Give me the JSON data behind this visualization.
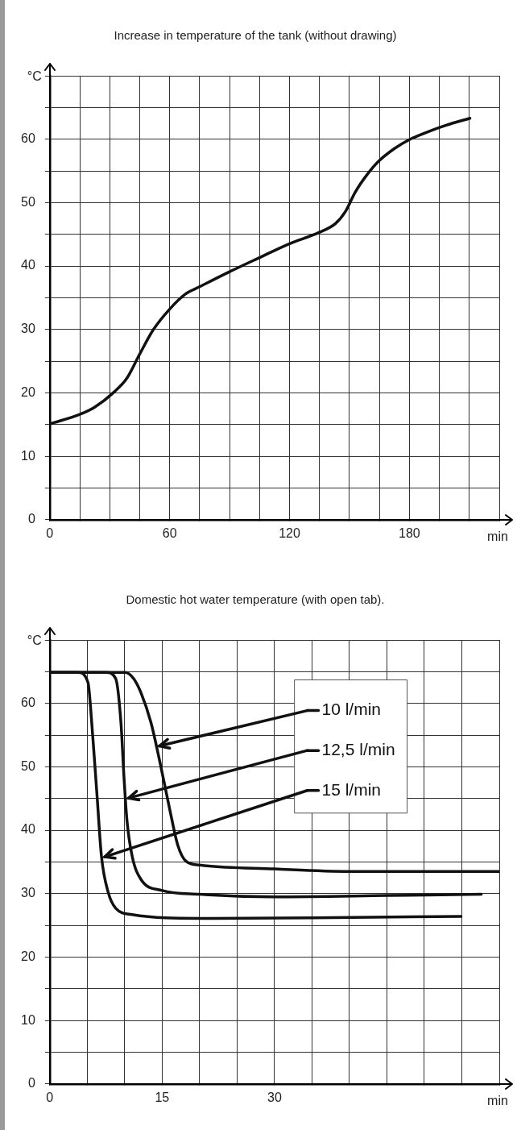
{
  "chart_data": [
    {
      "type": "line",
      "title": "Increase in temperature of the tank (without drawing)",
      "xlabel": "min",
      "ylabel": "°C",
      "grid": true,
      "x": [
        0,
        15,
        22.3,
        32.1,
        38.6,
        45,
        51.7,
        60,
        68,
        74.8,
        90,
        104.8,
        119.8,
        134.8,
        143,
        148,
        152.8,
        159.3,
        164.2,
        172.4,
        179.8,
        188.7,
        198.4,
        210.3
      ],
      "values": [
        15.1,
        16.6,
        17.7,
        20.1,
        22.3,
        26.1,
        29.9,
        33.2,
        35.6,
        36.7,
        39.1,
        41.3,
        43.5,
        45.3,
        46.7,
        48.6,
        51.6,
        54.6,
        56.4,
        58.5,
        59.9,
        61.1,
        62.2,
        63.3
      ],
      "color": "#111111",
      "xlim": [
        0,
        225
      ],
      "ylim": [
        0,
        70
      ],
      "xticks": [
        0,
        {
          "value": 15,
          "label": null
        },
        {
          "value": 30,
          "label": null
        },
        {
          "value": 45,
          "label": null
        },
        60,
        {
          "value": 75,
          "label": null
        },
        {
          "value": 90,
          "label": null
        },
        {
          "value": 105,
          "label": null
        },
        120,
        {
          "value": 135,
          "label": null
        },
        {
          "value": 150,
          "label": null
        },
        {
          "value": 165,
          "label": null
        },
        180,
        {
          "value": 195,
          "label": null
        },
        {
          "value": 210,
          "label": null
        },
        {
          "value": 225,
          "label": null
        }
      ],
      "yticks": [
        0,
        {
          "value": 5,
          "label": null
        },
        10,
        {
          "value": 15,
          "label": null
        },
        20,
        {
          "value": 25,
          "label": null
        },
        30,
        {
          "value": 35,
          "label": null
        },
        40,
        {
          "value": 45,
          "label": null
        },
        50,
        {
          "value": 55,
          "label": null
        },
        60,
        {
          "value": 65,
          "label": null
        },
        {
          "value": 70,
          "label": null
        }
      ]
    },
    {
      "type": "line",
      "title": "Domestic hot water temperature (with open tab).",
      "xlabel": "min",
      "ylabel": "°C",
      "grid": true,
      "legend": "top right",
      "series": [
        {
          "name": "10 l/min",
          "color": "#111111",
          "x": [
            0,
            10.1,
            11.2,
            12.2,
            13.5,
            14.8,
            16.1,
            17.1,
            18.2,
            20,
            30,
            40,
            60
          ],
          "values": [
            64.9,
            64.9,
            63.9,
            61.6,
            57,
            50.2,
            42.8,
            37.6,
            35.1,
            34.5,
            33.9,
            33.5,
            33.5
          ]
        },
        {
          "name": "12,5 l/min",
          "color": "#111111",
          "x": [
            0,
            7.5,
            8.8,
            9.5,
            9.9,
            10.3,
            11,
            12.2,
            15,
            20,
            30,
            45,
            57.6
          ],
          "values": [
            64.9,
            64.9,
            63.9,
            57,
            48.5,
            41.6,
            35.9,
            32.2,
            30.5,
            29.9,
            29.5,
            29.7,
            29.9
          ]
        },
        {
          "name": "15 l/min",
          "color": "#111111",
          "x": [
            0,
            3.7,
            5.1,
            5.6,
            6.3,
            6.9,
            7.8,
            8.8,
            11,
            20,
            35,
            54.9
          ],
          "values": [
            64.9,
            64.9,
            63.3,
            57,
            45.6,
            35.9,
            30.2,
            27.7,
            26.7,
            26.1,
            26.2,
            26.4
          ]
        }
      ],
      "xlim": [
        0,
        60
      ],
      "ylim": [
        0,
        70
      ],
      "xticks": [
        0,
        {
          "value": 5,
          "label": null
        },
        {
          "value": 10,
          "label": null
        },
        15,
        {
          "value": 20,
          "label": null
        },
        {
          "value": 25,
          "label": null
        },
        30,
        {
          "value": 35,
          "label": null
        },
        {
          "value": 40,
          "label": null
        },
        {
          "value": 45,
          "label": null
        },
        {
          "value": 50,
          "label": null
        },
        {
          "value": 55,
          "label": null
        },
        {
          "value": 60,
          "label": null
        }
      ],
      "yticks": [
        0,
        {
          "value": 5,
          "label": null
        },
        10,
        {
          "value": 15,
          "label": null
        },
        20,
        {
          "value": 25,
          "label": null
        },
        30,
        {
          "value": 35,
          "label": null
        },
        40,
        {
          "value": 45,
          "label": null
        },
        50,
        {
          "value": 55,
          "label": null
        },
        60,
        {
          "value": 65,
          "label": null
        },
        {
          "value": 70,
          "label": null
        }
      ]
    }
  ]
}
